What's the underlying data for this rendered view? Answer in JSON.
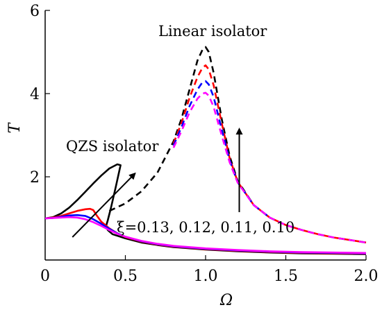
{
  "chart_data": {
    "type": "line",
    "title": "",
    "xlabel": "Ω",
    "ylabel": "T",
    "xlim": [
      0,
      2.0
    ],
    "ylim": [
      0,
      6
    ],
    "xticks": [
      0,
      0.5,
      1.0,
      1.5,
      2.0
    ],
    "xtick_labels": [
      "0",
      "0.5",
      "1.0",
      "1.5",
      "2.0"
    ],
    "yticks": [
      2,
      4,
      6
    ],
    "ytick_labels": [
      "2",
      "4",
      "6"
    ],
    "grid": false,
    "annotations": {
      "linear": "Linear isolator",
      "qzs": "QZS isolator",
      "xi": "ξ=0.13, 0.12, 0.11, 0.10"
    },
    "series": [
      {
        "color": "#000000",
        "dash": "solid",
        "group": "QZS",
        "x": [
          0,
          0.05,
          0.1,
          0.15,
          0.2,
          0.25,
          0.3,
          0.35,
          0.4,
          0.45,
          0.47,
          0.44,
          0.41,
          0.39,
          0.38,
          0.39,
          0.42,
          0.5,
          0.6,
          0.7,
          0.8,
          1.0,
          1.2,
          1.4,
          1.6,
          1.8,
          2.0
        ],
        "y": [
          1.0,
          1.03,
          1.12,
          1.26,
          1.44,
          1.64,
          1.84,
          2.03,
          2.2,
          2.3,
          2.28,
          1.75,
          1.25,
          0.95,
          0.82,
          0.72,
          0.62,
          0.52,
          0.42,
          0.36,
          0.31,
          0.25,
          0.21,
          0.18,
          0.16,
          0.15,
          0.14
        ]
      },
      {
        "color": "#ff0000",
        "dash": "solid",
        "group": "QZS",
        "x": [
          0,
          0.05,
          0.1,
          0.15,
          0.2,
          0.25,
          0.28,
          0.3,
          0.32,
          0.35,
          0.4,
          0.45,
          0.5,
          0.6,
          0.7,
          0.8,
          1.0,
          1.2,
          1.4,
          1.6,
          1.8,
          2.0
        ],
        "y": [
          1.0,
          1.02,
          1.06,
          1.12,
          1.18,
          1.22,
          1.23,
          1.2,
          1.08,
          0.92,
          0.76,
          0.64,
          0.55,
          0.44,
          0.37,
          0.32,
          0.26,
          0.22,
          0.19,
          0.17,
          0.16,
          0.15
        ]
      },
      {
        "color": "#0000ff",
        "dash": "solid",
        "group": "QZS",
        "x": [
          0,
          0.05,
          0.1,
          0.15,
          0.2,
          0.25,
          0.3,
          0.35,
          0.4,
          0.45,
          0.5,
          0.6,
          0.7,
          0.8,
          1.0,
          1.2,
          1.4,
          1.6,
          1.8,
          2.0
        ],
        "y": [
          1.0,
          1.01,
          1.04,
          1.07,
          1.08,
          1.06,
          0.98,
          0.87,
          0.75,
          0.64,
          0.56,
          0.45,
          0.38,
          0.33,
          0.27,
          0.23,
          0.2,
          0.18,
          0.17,
          0.16
        ]
      },
      {
        "color": "#ff00ff",
        "dash": "solid",
        "group": "QZS",
        "x": [
          0,
          0.05,
          0.1,
          0.15,
          0.2,
          0.25,
          0.3,
          0.35,
          0.4,
          0.45,
          0.5,
          0.6,
          0.7,
          0.8,
          1.0,
          1.2,
          1.4,
          1.6,
          1.8,
          2.0
        ],
        "y": [
          1.0,
          1.01,
          1.02,
          1.03,
          1.02,
          0.98,
          0.91,
          0.82,
          0.72,
          0.63,
          0.56,
          0.46,
          0.39,
          0.34,
          0.28,
          0.24,
          0.21,
          0.19,
          0.18,
          0.17
        ]
      },
      {
        "color": "#000000",
        "dash": "dashed",
        "group": "Linear",
        "x": [
          0.4,
          0.5,
          0.6,
          0.7,
          0.8,
          0.85,
          0.9,
          0.95,
          0.98,
          1.0,
          1.02,
          1.05,
          1.1,
          1.15,
          1.2,
          1.3,
          1.4,
          1.5,
          1.6,
          1.7,
          1.8,
          1.9,
          2.0
        ],
        "y": [
          1.18,
          1.36,
          1.65,
          2.1,
          2.85,
          3.4,
          4.1,
          4.8,
          5.05,
          5.12,
          5.0,
          4.5,
          3.4,
          2.5,
          1.9,
          1.32,
          1.02,
          0.84,
          0.72,
          0.62,
          0.54,
          0.48,
          0.42
        ]
      },
      {
        "color": "#ff0000",
        "dash": "dashed",
        "group": "Linear",
        "x": [
          0.8,
          0.85,
          0.9,
          0.95,
          0.98,
          1.0,
          1.02,
          1.05,
          1.1,
          1.15,
          1.2,
          1.3,
          1.4,
          1.5,
          1.6,
          1.7,
          1.8,
          1.9,
          2.0
        ],
        "y": [
          2.8,
          3.3,
          3.9,
          4.4,
          4.62,
          4.68,
          4.58,
          4.2,
          3.3,
          2.45,
          1.88,
          1.32,
          1.02,
          0.84,
          0.72,
          0.62,
          0.54,
          0.48,
          0.42
        ]
      },
      {
        "color": "#0000ff",
        "dash": "dashed",
        "group": "Linear",
        "x": [
          0.8,
          0.85,
          0.9,
          0.95,
          0.98,
          1.0,
          1.02,
          1.05,
          1.1,
          1.15,
          1.2,
          1.3,
          1.4
        ],
        "y": [
          2.75,
          3.2,
          3.7,
          4.1,
          4.27,
          4.3,
          4.22,
          3.92,
          3.15,
          2.4,
          1.87,
          1.32,
          1.02
        ]
      },
      {
        "color": "#ff00ff",
        "dash": "dashed",
        "group": "Linear",
        "x": [
          0.8,
          0.85,
          0.9,
          0.95,
          0.98,
          1.0,
          1.02,
          1.05,
          1.1,
          1.15,
          1.2,
          1.3,
          1.4,
          1.5,
          1.6,
          1.7,
          1.8,
          1.9,
          2.0
        ],
        "y": [
          2.7,
          3.1,
          3.55,
          3.88,
          4.0,
          4.02,
          3.95,
          3.68,
          3.0,
          2.35,
          1.86,
          1.32,
          1.02,
          0.84,
          0.72,
          0.62,
          0.54,
          0.48,
          0.42
        ]
      }
    ],
    "arrows": [
      {
        "from": [
          0.17,
          0.55
        ],
        "to": [
          0.56,
          2.08
        ]
      },
      {
        "from": [
          1.21,
          1.15
        ],
        "to": [
          1.21,
          3.15
        ]
      }
    ]
  }
}
